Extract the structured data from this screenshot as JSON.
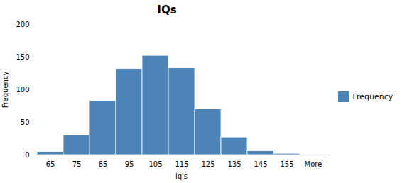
{
  "chart_data": {
    "type": "bar",
    "title": "IQs",
    "xlabel": "iq's",
    "ylabel": "Frequency",
    "categories": [
      "65",
      "75",
      "85",
      "95",
      "105",
      "115",
      "125",
      "135",
      "145",
      "155",
      "More"
    ],
    "series": [
      {
        "name": "Frequency",
        "color": "#4d84b8",
        "values": [
          5,
          30,
          83,
          132,
          152,
          133,
          70,
          27,
          6,
          2,
          0
        ]
      }
    ],
    "ylim": [
      0,
      200
    ],
    "yticks": [
      0,
      50,
      100,
      150,
      200
    ],
    "grid": false,
    "legend": "right"
  }
}
